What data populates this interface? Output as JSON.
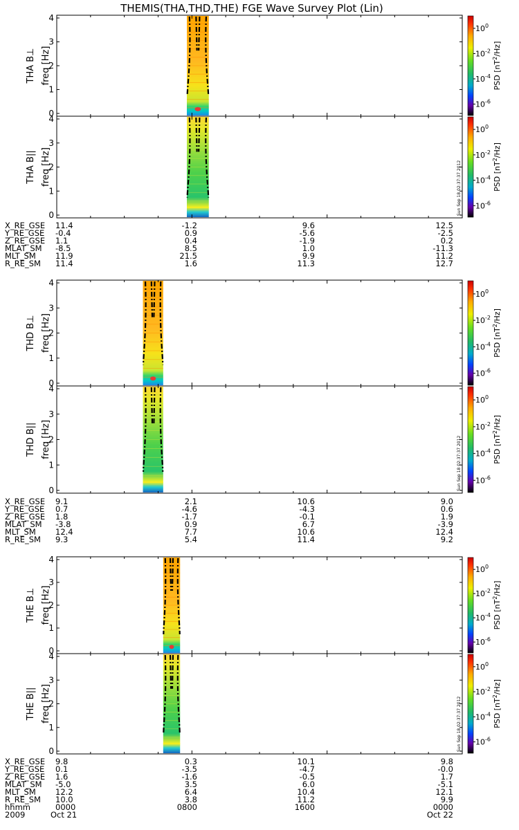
{
  "title": "THEMIS(THA,THD,THE) FGE Wave Survey Plot (Lin)",
  "colorbar": {
    "label_base": "PSD [nT",
    "label_sup": "2",
    "label_end": "/Hz]",
    "ticks": [
      {
        "mant": "10",
        "exp": "0"
      },
      {
        "mant": "10",
        "exp": "-2"
      },
      {
        "mant": "10",
        "exp": "-4"
      },
      {
        "mant": "10",
        "exp": "-6"
      }
    ]
  },
  "stamp": "Sun Sep 18 02:37:37 2012",
  "freq_label": "freq [Hz]",
  "chart_data": {
    "type": "heatmap",
    "xlabel": "hhmm",
    "x_range": [
      "2009-10-21 00:00",
      "2009-10-22 00:00"
    ],
    "x_ticks": [
      "0000",
      "0800",
      "1600",
      "0000"
    ],
    "x_dates": [
      "2009",
      "Oct 21",
      "Oct 22"
    ],
    "freq_ticks": [
      "0",
      "1",
      "2",
      "3",
      "4"
    ],
    "ylim": [
      0,
      4
    ],
    "color_scale": "log",
    "panels": [
      {
        "label": "THA B⊥",
        "probe": "THA",
        "component": "perp",
        "data_hours": [
          7.7,
          9.0
        ]
      },
      {
        "label": "THA B||",
        "probe": "THA",
        "component": "par",
        "data_hours": [
          7.7,
          9.0
        ]
      },
      {
        "label": "THD B⊥",
        "probe": "THD",
        "component": "perp",
        "data_hours": [
          5.1,
          6.3
        ]
      },
      {
        "label": "THD B||",
        "probe": "THD",
        "component": "par",
        "data_hours": [
          5.1,
          6.3
        ]
      },
      {
        "label": "THE B⊥",
        "probe": "THE",
        "component": "perp",
        "data_hours": [
          6.3,
          7.3
        ]
      },
      {
        "label": "THE B||",
        "probe": "THE",
        "component": "par",
        "data_hours": [
          6.3,
          7.3
        ]
      }
    ],
    "ephemeris": [
      {
        "probe": "THA",
        "rows": [
          {
            "name": "X_RE_GSE",
            "values": [
              "11.4",
              "-1.2",
              "9.6",
              "12.5"
            ]
          },
          {
            "name": "Y_RE_GSE",
            "values": [
              "-0.4",
              "0.9",
              "-5.6",
              "-2.5"
            ]
          },
          {
            "name": "Z_RE_GSE",
            "values": [
              "1.1",
              "0.4",
              "-1.9",
              "0.2"
            ]
          },
          {
            "name": "MLAT_SM",
            "values": [
              "-8.5",
              "8.5",
              "1.0",
              "-11.3"
            ]
          },
          {
            "name": "MLT_SM",
            "values": [
              "11.9",
              "21.5",
              "9.9",
              "11.2"
            ]
          },
          {
            "name": "R_RE_SM",
            "values": [
              "11.4",
              "1.6",
              "11.3",
              "12.7"
            ]
          }
        ]
      },
      {
        "probe": "THD",
        "rows": [
          {
            "name": "X_RE_GSE",
            "values": [
              "9.1",
              "2.1",
              "10.6",
              "9.0"
            ]
          },
          {
            "name": "Y_RE_GSE",
            "values": [
              "0.7",
              "-4.6",
              "-4.3",
              "0.6"
            ]
          },
          {
            "name": "Z_RE_GSE",
            "values": [
              "1.8",
              "-1.7",
              "-0.1",
              "1.9"
            ]
          },
          {
            "name": "MLAT_SM",
            "values": [
              "-3.8",
              "0.9",
              "6.7",
              "-3.9"
            ]
          },
          {
            "name": "MLT_SM",
            "values": [
              "12.4",
              "7.7",
              "10.6",
              "12.4"
            ]
          },
          {
            "name": "R_RE_SM",
            "values": [
              "9.3",
              "5.4",
              "11.4",
              "9.2"
            ]
          }
        ]
      },
      {
        "probe": "THE",
        "rows": [
          {
            "name": "X_RE_GSE",
            "values": [
              "9.8",
              "0.3",
              "10.1",
              "9.8"
            ]
          },
          {
            "name": "Y_RE_GSE",
            "values": [
              "0.1",
              "-3.5",
              "-4.7",
              "-0.0"
            ]
          },
          {
            "name": "Z_RE_GSE",
            "values": [
              "1.6",
              "-1.6",
              "-0.5",
              "1.7"
            ]
          },
          {
            "name": "MLAT_SM",
            "values": [
              "-5.0",
              "3.5",
              "6.0",
              "-5.1"
            ]
          },
          {
            "name": "MLT_SM",
            "values": [
              "12.2",
              "6.4",
              "10.4",
              "12.1"
            ]
          },
          {
            "name": "R_RE_SM",
            "values": [
              "10.0",
              "3.8",
              "11.2",
              "9.9"
            ]
          }
        ]
      }
    ]
  }
}
